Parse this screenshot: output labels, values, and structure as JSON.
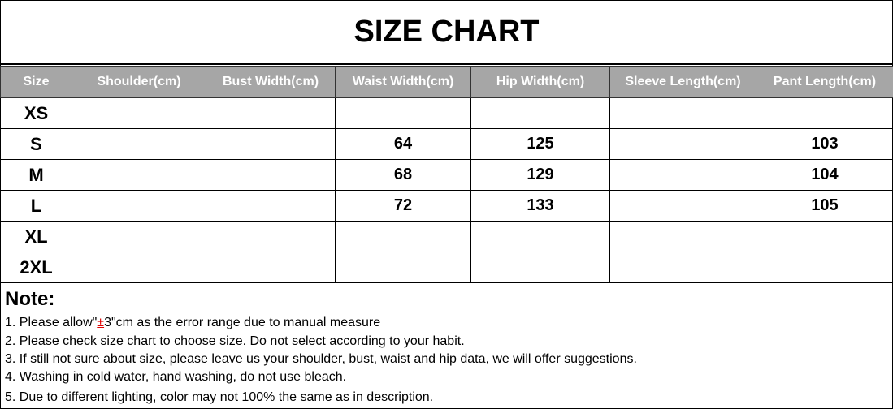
{
  "title": "SIZE CHART",
  "headers": [
    "Size",
    "Shoulder(cm)",
    "Bust Width(cm)",
    "Waist Width(cm)",
    "Hip Width(cm)",
    "Sleeve Length(cm)",
    "Pant Length(cm)"
  ],
  "rows": [
    [
      "XS",
      "",
      "",
      "",
      "",
      "",
      ""
    ],
    [
      "S",
      "",
      "",
      "64",
      "125",
      "",
      "103"
    ],
    [
      "M",
      "",
      "",
      "68",
      "129",
      "",
      "104"
    ],
    [
      "L",
      "",
      "",
      "72",
      "133",
      "",
      "105"
    ],
    [
      "XL",
      "",
      "",
      "",
      "",
      "",
      ""
    ],
    [
      "2XL",
      "",
      "",
      "",
      "",
      "",
      ""
    ]
  ],
  "colors": {
    "header_bg": "#a6a6a6",
    "header_text": "#ffffff",
    "accent": "#e00000"
  },
  "notes": {
    "title": "Note:",
    "note1_prefix": "1. Please allow\"",
    "note1_symbol": "±",
    "note1_suffix": "3\"cm as the error range due to manual measure",
    "items": [
      "2. Please check size chart to choose size. Do not select according to your habit.",
      "3. If still not sure about size, please leave us your shoulder, bust, waist and hip data, we will offer suggestions.",
      "4. Washing in cold water, hand washing, do not use bleach.",
      "5. Due to different lighting, color may not 100% the same as in description."
    ]
  }
}
